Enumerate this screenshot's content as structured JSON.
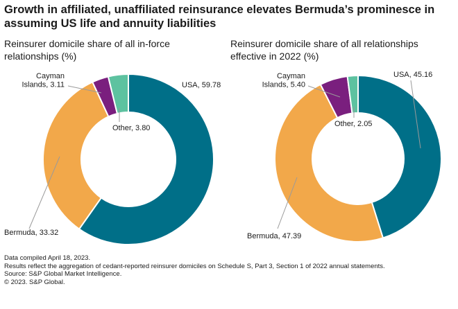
{
  "title": "Growth in affiliated, unaffiliated reinsurance elevates Bermuda’s prominesce in assuming US life and annuity liabilities",
  "chart_data": [
    {
      "type": "pie",
      "subtitle": "Reinsurer domicile share of all in-force relationships (%)",
      "slices": [
        {
          "name": "USA",
          "value": 59.78,
          "label": "USA, 59.78",
          "color": "#006f88"
        },
        {
          "name": "Bermuda",
          "value": 33.32,
          "label": "Bermuda, 33.32",
          "color": "#f2a84a"
        },
        {
          "name": "Cayman Islands",
          "value": 3.11,
          "label": "Cayman Islands, 3.11",
          "color": "#7a1f7e"
        },
        {
          "name": "Other",
          "value": 3.8,
          "label": "Other, 3.80",
          "color": "#5dc2a0"
        }
      ]
    },
    {
      "type": "pie",
      "subtitle": "Reinsurer domicile share of all relationships effective in 2022 (%)",
      "slices": [
        {
          "name": "USA",
          "value": 45.16,
          "label": "USA, 45.16",
          "color": "#006f88"
        },
        {
          "name": "Bermuda",
          "value": 47.39,
          "label": "Bermuda, 47.39",
          "color": "#f2a84a"
        },
        {
          "name": "Cayman Islands",
          "value": 5.4,
          "label": "Cayman Islands, 5.40",
          "color": "#7a1f7e"
        },
        {
          "name": "Other",
          "value": 2.05,
          "label": "Other, 2.05",
          "color": "#5dc2a0"
        }
      ]
    }
  ],
  "footer": {
    "line1": "Data compiled April 18, 2023.",
    "line2": "Results reflect the aggregation of cedant-reported reinsurer domiciles on Schedule S, Part 3, Section 1 of 2022 annual statements.",
    "line3": "Source: S&P Global Market Intelligence.",
    "line4": "© 2023. S&P Global."
  }
}
